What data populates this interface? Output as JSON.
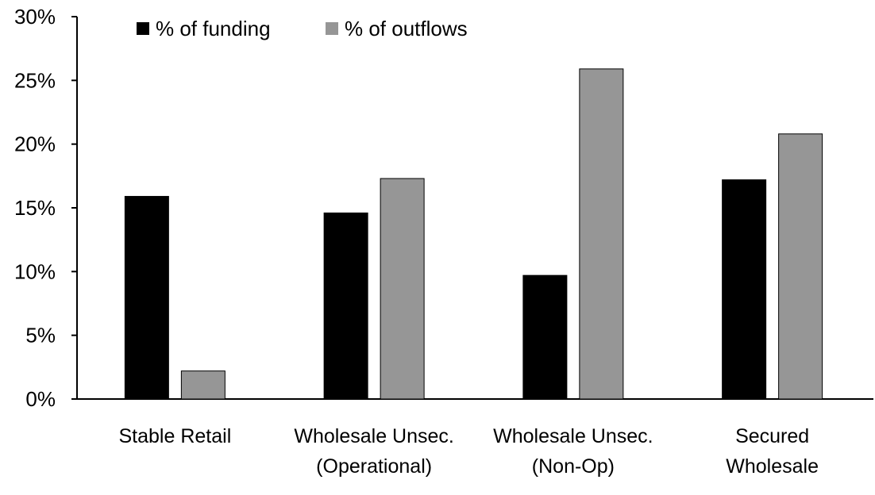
{
  "chart_data": {
    "type": "bar",
    "categories": [
      [
        "Stable Retail"
      ],
      [
        "Wholesale Unsec.",
        "(Operational)"
      ],
      [
        "Wholesale Unsec.",
        "(Non-Op)"
      ],
      [
        "Secured",
        "Wholesale"
      ]
    ],
    "series": [
      {
        "name": "% of funding",
        "color": "#000000",
        "values": [
          15.9,
          14.6,
          9.7,
          17.2
        ]
      },
      {
        "name": "% of outflows",
        "color": "#969696",
        "values": [
          2.2,
          17.3,
          25.9,
          20.8
        ]
      }
    ],
    "yticks": [
      "0%",
      "5%",
      "10%",
      "15%",
      "20%",
      "25%",
      "30%"
    ],
    "ylim": [
      0,
      30
    ],
    "grid": false,
    "legend": "top-left"
  }
}
